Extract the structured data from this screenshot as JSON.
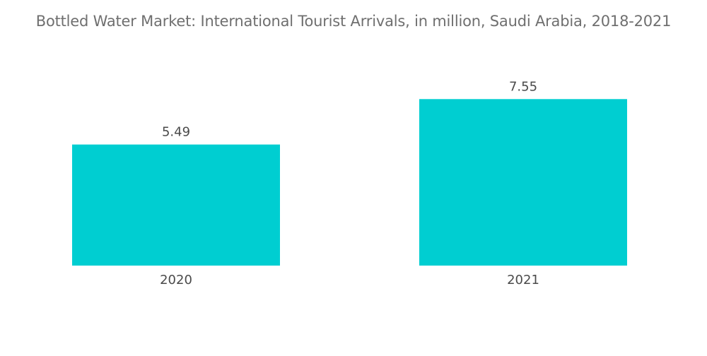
{
  "chart_data": {
    "type": "bar",
    "title": "Bottled Water Market: International Tourist Arrivals, in million, Saudi Arabia, 2018-2021",
    "categories": [
      "2020",
      "2021"
    ],
    "values": [
      5.49,
      7.55
    ],
    "data_labels": [
      "5.49",
      "7.55"
    ],
    "xlabel": "",
    "ylabel": "",
    "ylim": [
      0,
      8.2
    ],
    "grid": false,
    "legend": "none",
    "bar_color": "#00ced1"
  }
}
